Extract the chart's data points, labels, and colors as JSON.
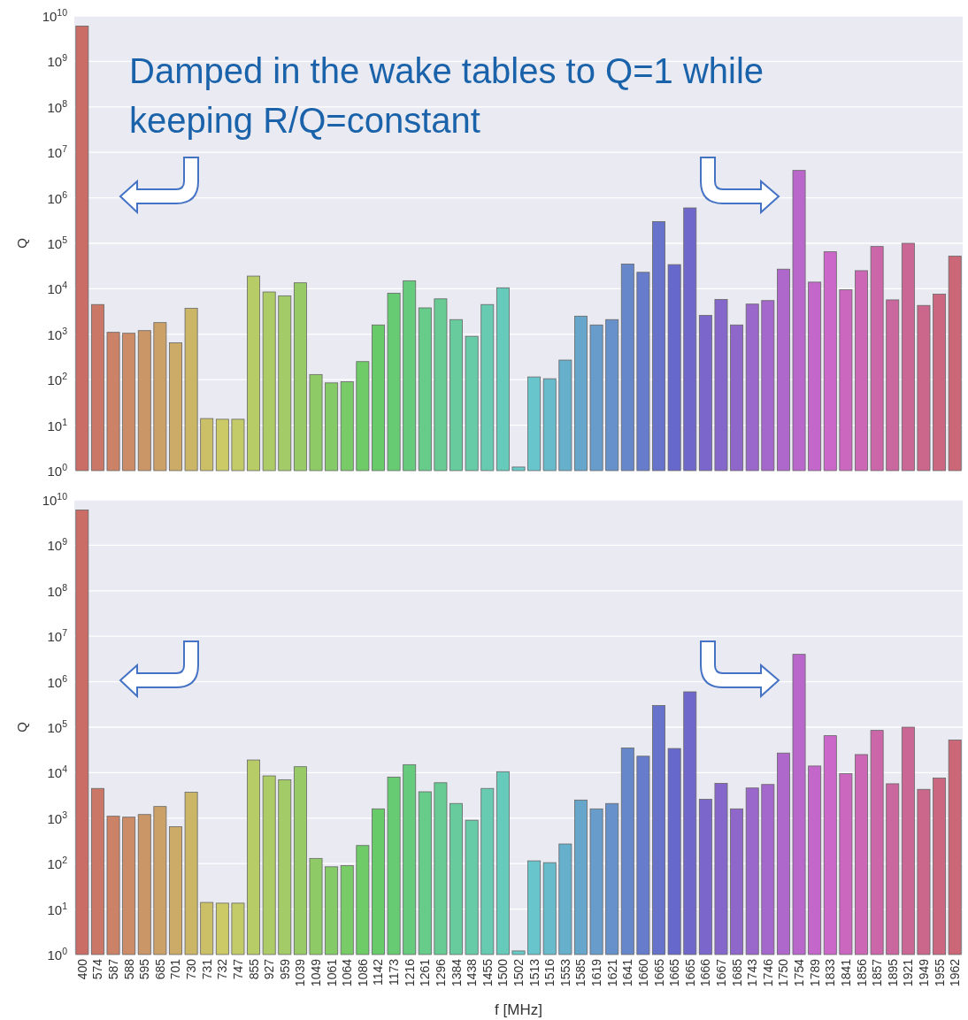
{
  "chart_data": [
    {
      "type": "bar",
      "ylabel": "Q",
      "log": true,
      "grid": "y",
      "tick_labels": "y",
      "annotations": [
        "Damped in the wake tables to Q=1 while keeping R/Q=constant"
      ],
      "categories": [
        "400",
        "574",
        "587",
        "588",
        "595",
        "685",
        "701",
        "730",
        "731",
        "732",
        "747",
        "855",
        "927",
        "959",
        "1039",
        "1049",
        "1061",
        "1064",
        "1086",
        "1142",
        "1173",
        "1216",
        "1261",
        "1296",
        "1384",
        "1438",
        "1455",
        "1500",
        "1502",
        "1513",
        "1516",
        "1553",
        "1585",
        "1619",
        "1621",
        "1641",
        "1660",
        "1665",
        "1665",
        "1665",
        "1666",
        "1667",
        "1685",
        "1743",
        "1746",
        "1750",
        "1754",
        "1789",
        "1833",
        "1841",
        "1856",
        "1857",
        "1895",
        "1921",
        "1949",
        "1955",
        "1962"
      ],
      "values": [
        6000000000.0,
        4500,
        1100,
        1050,
        1200,
        1800,
        650,
        3700,
        14,
        13.5,
        13.5,
        19000,
        8500,
        7000,
        13500,
        130,
        85,
        90,
        250,
        1600,
        8000,
        15000,
        3800,
        6000,
        2100,
        900,
        4500,
        10500,
        1.2,
        115,
        105,
        270,
        2500,
        1600,
        2100,
        35000,
        23000,
        300000,
        34000,
        600000,
        2600,
        5800,
        1600,
        4600,
        5500,
        27000,
        4000000,
        14000,
        65000,
        9500,
        25000,
        85000,
        5700,
        100000,
        4300,
        7600,
        52000
      ],
      "colors": [
        "#cb6d67",
        "#cb7767",
        "#cb8267",
        "#cb8c67",
        "#cb9667",
        "#cba167",
        "#cbab67",
        "#cbb567",
        "#cbc067",
        "#cbca67",
        "#c2cb67",
        "#b7cb67",
        "#adcb67",
        "#a3cb67",
        "#98cb67",
        "#8ecb67",
        "#84cb67",
        "#79cb67",
        "#6fcb67",
        "#67cb6a",
        "#67cb74",
        "#67cb7e",
        "#67cb89",
        "#67cb93",
        "#67cb9d",
        "#67cba8",
        "#67cbb2",
        "#67cbbc",
        "#67cbc7",
        "#67c5cb",
        "#67bbcb",
        "#67b0cb",
        "#67a6cb",
        "#679ccb",
        "#6791cb",
        "#6787cb",
        "#677dcb",
        "#6772cb",
        "#6768cb",
        "#7067cb",
        "#7b67cb",
        "#8567cb",
        "#8f67cb",
        "#9a67cb",
        "#a467cb",
        "#ae67cb",
        "#b967cb",
        "#c367cb",
        "#cb67c8",
        "#cb67be",
        "#cb67b4",
        "#cb67a9",
        "#cb679f",
        "#cb6795",
        "#cb678a",
        "#cb6780",
        "#cb6776"
      ],
      "ylim": [
        1,
        10000000000
      ],
      "yticks": [
        {
          "value": 1,
          "label": "10$^{0}$"
        },
        {
          "value": 10,
          "label": "10$^{1}$"
        },
        {
          "value": 100,
          "label": "10$^{2}$"
        },
        {
          "value": 1000,
          "label": "10$^{3}$"
        },
        {
          "value": 10000,
          "label": "10$^{4}$"
        },
        {
          "value": 100000,
          "label": "10$^{5}$"
        },
        {
          "value": 1000000,
          "label": "10$^{6}$"
        },
        {
          "value": 10000000,
          "label": "10$^{7}$"
        },
        {
          "value": 100000000,
          "label": "10$^{8}$"
        },
        {
          "value": 1000000000,
          "label": "10$^{9}$"
        },
        {
          "value": 10000000000,
          "label": "10$^{10}$"
        }
      ]
    },
    {
      "type": "bar",
      "ylabel": "Q",
      "xlabel": "f [MHz]",
      "log": true,
      "grid": "y",
      "categories": [
        "400",
        "574",
        "587",
        "588",
        "595",
        "685",
        "701",
        "730",
        "731",
        "732",
        "747",
        "855",
        "927",
        "959",
        "1039",
        "1049",
        "1061",
        "1064",
        "1086",
        "1142",
        "1173",
        "1216",
        "1261",
        "1296",
        "1384",
        "1438",
        "1455",
        "1500",
        "1502",
        "1513",
        "1516",
        "1553",
        "1585",
        "1619",
        "1621",
        "1641",
        "1660",
        "1665",
        "1665",
        "1665",
        "1666",
        "1667",
        "1685",
        "1743",
        "1746",
        "1750",
        "1754",
        "1789",
        "1833",
        "1841",
        "1856",
        "1857",
        "1895",
        "1921",
        "1949",
        "1955",
        "1962"
      ],
      "values": [
        6000000000.0,
        4500,
        1100,
        1050,
        1200,
        1800,
        650,
        3700,
        14,
        13.5,
        13.5,
        19000,
        8500,
        7000,
        13500,
        130,
        85,
        90,
        250,
        1600,
        8000,
        15000,
        3800,
        6000,
        2100,
        900,
        4500,
        10500,
        1.2,
        115,
        105,
        270,
        2500,
        1600,
        2100,
        35000,
        23000,
        300000,
        34000,
        600000,
        2600,
        5800,
        1600,
        4600,
        5500,
        27000,
        4000000,
        14000,
        65000,
        9500,
        25000,
        85000,
        5700,
        100000,
        4300,
        7600,
        52000
      ],
      "colors": [
        "#cb6d67",
        "#cb7767",
        "#cb8267",
        "#cb8c67",
        "#cb9667",
        "#cba167",
        "#cbab67",
        "#cbb567",
        "#cbc067",
        "#cbca67",
        "#c2cb67",
        "#b7cb67",
        "#adcb67",
        "#a3cb67",
        "#98cb67",
        "#8ecb67",
        "#84cb67",
        "#79cb67",
        "#6fcb67",
        "#67cb6a",
        "#67cb74",
        "#67cb7e",
        "#67cb89",
        "#67cb93",
        "#67cb9d",
        "#67cba8",
        "#67cbb2",
        "#67cbbc",
        "#67cbc7",
        "#67c5cb",
        "#67bbcb",
        "#67b0cb",
        "#67a6cb",
        "#679ccb",
        "#6791cb",
        "#6787cb",
        "#677dcb",
        "#6772cb",
        "#6768cb",
        "#7067cb",
        "#7b67cb",
        "#8567cb",
        "#8f67cb",
        "#9a67cb",
        "#a467cb",
        "#ae67cb",
        "#b967cb",
        "#c367cb",
        "#cb67c8",
        "#cb67be",
        "#cb67b4",
        "#cb67a9",
        "#cb679f",
        "#cb6795",
        "#cb678a",
        "#cb6780",
        "#cb6776"
      ],
      "ylim": [
        1,
        10000000000
      ],
      "yticks": [
        {
          "value": 1,
          "label": "10$^{0}$"
        },
        {
          "value": 10,
          "label": "10$^{1}$"
        },
        {
          "value": 100,
          "label": "10$^{2}$"
        },
        {
          "value": 1000,
          "label": "10$^{3}$"
        },
        {
          "value": 10000,
          "label": "10$^{4}$"
        },
        {
          "value": 100000,
          "label": "10$^{5}$"
        },
        {
          "value": 1000000,
          "label": "10$^{6}$"
        },
        {
          "value": 10000000,
          "label": "10$^{7}$"
        },
        {
          "value": 100000000,
          "label": "10$^{8}$"
        },
        {
          "value": 1000000000,
          "label": "10$^{9}$"
        },
        {
          "value": 10000000000,
          "label": "10$^{10}$"
        }
      ]
    }
  ]
}
